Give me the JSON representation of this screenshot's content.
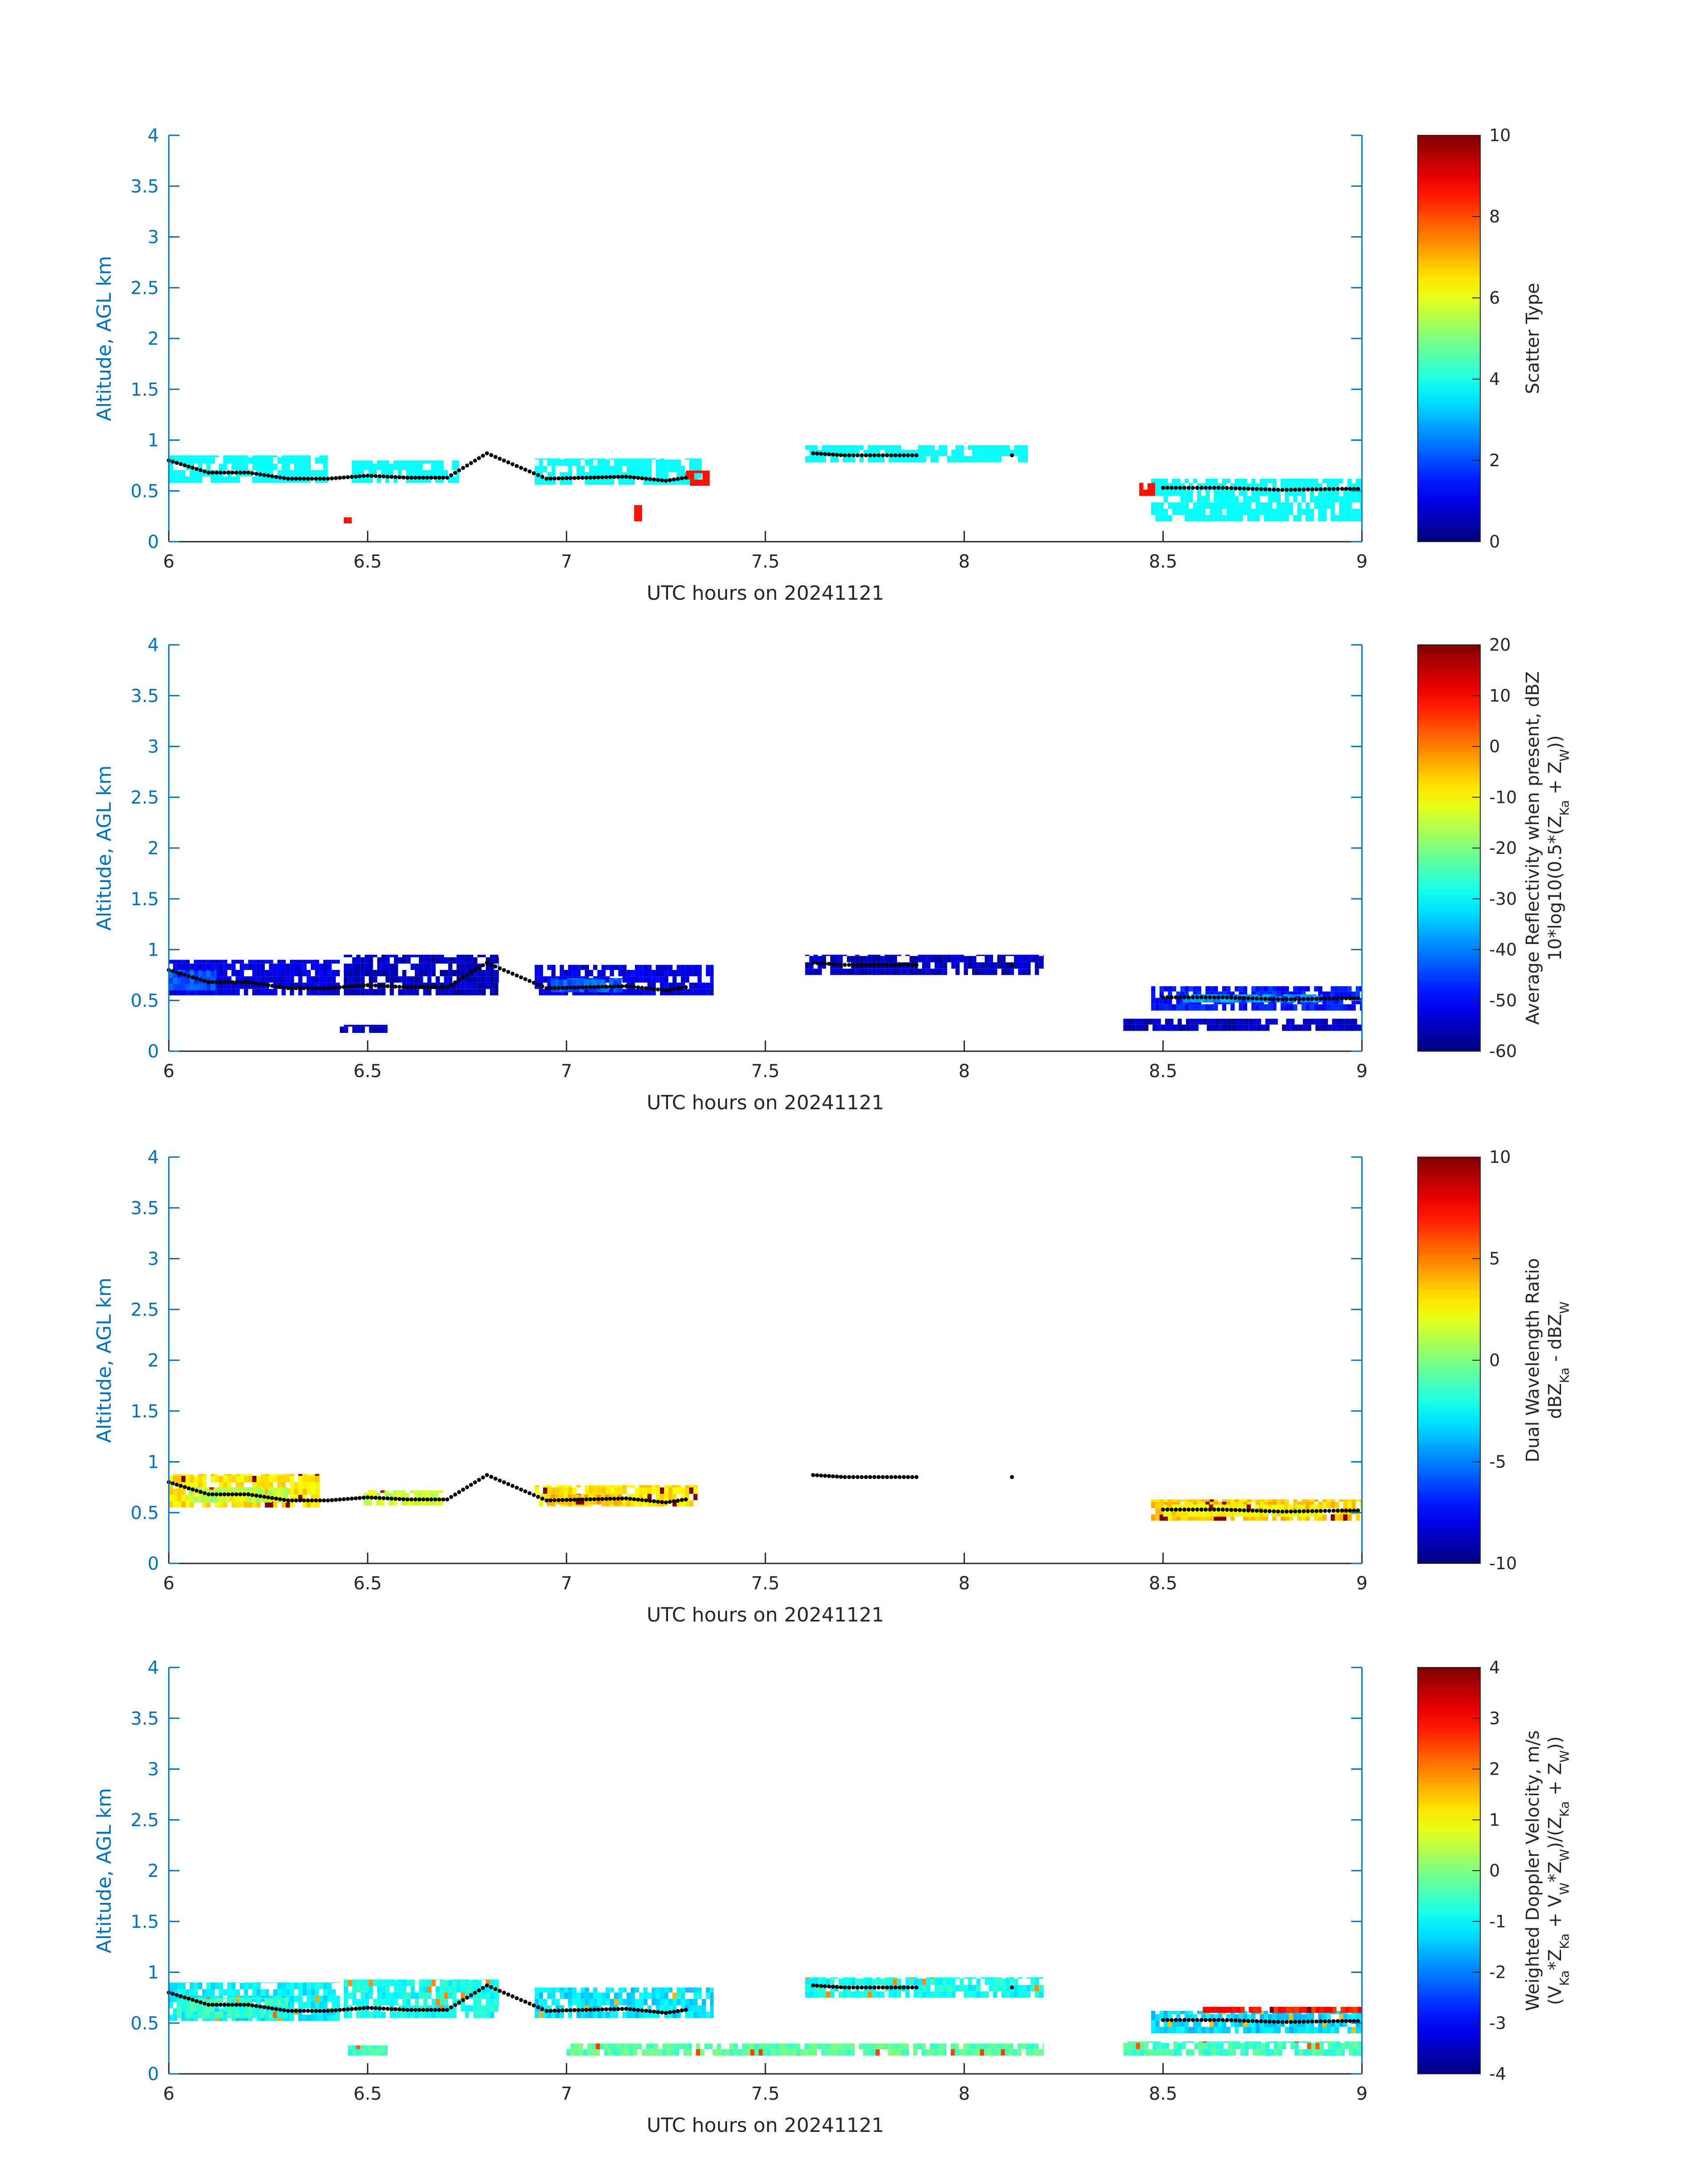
{
  "chart_data": [
    {
      "type": "heatmap",
      "xlabel": "UTC hours on 20241121",
      "ylabel": "Altitude, AGL km",
      "xlim": [
        6,
        9
      ],
      "ylim": [
        0,
        4
      ],
      "xticks": [
        "6",
        "6.5",
        "7",
        "7.5",
        "8",
        "8.5",
        "9"
      ],
      "yticks": [
        "0",
        "0.5",
        "1",
        "1.5",
        "2",
        "2.5",
        "3",
        "3.5",
        "4"
      ],
      "colorbar": {
        "label_lines": [
          "Scatter Type"
        ],
        "range": [
          0,
          10
        ],
        "ticks": [
          "0",
          "2",
          "4",
          "6",
          "8",
          "10"
        ],
        "colormap": "jet"
      },
      "echo_segments": [
        {
          "x0": 6.0,
          "x1": 6.4,
          "y0": 0.58,
          "y1": 0.85,
          "value": 3.8
        },
        {
          "x0": 6.46,
          "x1": 6.73,
          "y0": 0.58,
          "y1": 0.8,
          "value": 3.8
        },
        {
          "x0": 6.92,
          "x1": 7.34,
          "y0": 0.56,
          "y1": 0.82,
          "value": 3.8
        },
        {
          "x0": 7.6,
          "x1": 8.16,
          "y0": 0.78,
          "y1": 0.95,
          "value": 3.8
        },
        {
          "x0": 8.47,
          "x1": 9.0,
          "y0": 0.2,
          "y1": 0.62,
          "value": 3.8
        },
        {
          "x0": 8.44,
          "x1": 8.48,
          "y0": 0.45,
          "y1": 0.58,
          "value": 8.6
        },
        {
          "x0": 7.3,
          "x1": 7.36,
          "y0": 0.55,
          "y1": 0.7,
          "value": 8.6
        },
        {
          "x0": 6.44,
          "x1": 6.46,
          "y0": 0.18,
          "y1": 0.24,
          "value": 8.6
        },
        {
          "x0": 7.17,
          "x1": 7.19,
          "y0": 0.2,
          "y1": 0.36,
          "value": 8.6
        }
      ],
      "scatter_type_values": [
        3.8,
        8.6
      ],
      "cloud_base_trace": [
        {
          "x": 6.0,
          "y": 0.8
        },
        {
          "x": 6.1,
          "y": 0.68
        },
        {
          "x": 6.2,
          "y": 0.68
        },
        {
          "x": 6.3,
          "y": 0.62
        },
        {
          "x": 6.4,
          "y": 0.62
        },
        {
          "x": 6.5,
          "y": 0.65
        },
        {
          "x": 6.6,
          "y": 0.63
        },
        {
          "x": 6.7,
          "y": 0.63
        },
        {
          "x": 6.8,
          "y": 0.87
        },
        {
          "x": 6.95,
          "y": 0.62
        },
        {
          "x": 7.05,
          "y": 0.63
        },
        {
          "x": 7.15,
          "y": 0.64
        },
        {
          "x": 7.25,
          "y": 0.6
        },
        {
          "x": 7.3,
          "y": 0.63
        },
        {
          "x": 7.62,
          "y": 0.87
        },
        {
          "x": 7.7,
          "y": 0.85
        },
        {
          "x": 7.88,
          "y": 0.85
        },
        {
          "x": 8.12,
          "y": 0.85
        },
        {
          "x": 8.5,
          "y": 0.53
        },
        {
          "x": 8.65,
          "y": 0.53
        },
        {
          "x": 8.8,
          "y": 0.51
        },
        {
          "x": 8.95,
          "y": 0.52
        },
        {
          "x": 9.0,
          "y": 0.52
        }
      ]
    },
    {
      "type": "heatmap",
      "xlabel": "UTC hours on 20241121",
      "ylabel": "Altitude, AGL km",
      "xlim": [
        6,
        9
      ],
      "ylim": [
        0,
        4
      ],
      "xticks": [
        "6",
        "6.5",
        "7",
        "7.5",
        "8",
        "8.5",
        "9"
      ],
      "yticks": [
        "0",
        "0.5",
        "1",
        "1.5",
        "2",
        "2.5",
        "3",
        "3.5",
        "4"
      ],
      "colorbar": {
        "label_lines": [
          "Average Reflectivity when present, dBZ",
          "10*log10(0.5*(Z",
          "Ka",
          " + Z",
          "W",
          "))"
        ],
        "range": [
          -60,
          20
        ],
        "ticks": [
          "-60",
          "-50",
          "-40",
          "-30",
          "-20",
          "-10",
          "0",
          "10",
          "20"
        ],
        "colormap": "jet"
      },
      "echo_segments": [
        {
          "x0": 6.0,
          "x1": 6.43,
          "y0": 0.55,
          "y1": 0.9,
          "value": -52
        },
        {
          "x0": 6.0,
          "x1": 6.12,
          "y0": 0.6,
          "y1": 0.8,
          "value": -43
        },
        {
          "x0": 6.44,
          "x1": 6.83,
          "y0": 0.55,
          "y1": 0.95,
          "value": -55
        },
        {
          "x0": 6.43,
          "x1": 6.55,
          "y0": 0.18,
          "y1": 0.26,
          "value": -55
        },
        {
          "x0": 6.92,
          "x1": 7.37,
          "y0": 0.55,
          "y1": 0.85,
          "value": -52
        },
        {
          "x0": 6.96,
          "x1": 7.14,
          "y0": 0.58,
          "y1": 0.72,
          "value": -43
        },
        {
          "x0": 7.6,
          "x1": 8.2,
          "y0": 0.75,
          "y1": 0.95,
          "value": -55
        },
        {
          "x0": 8.4,
          "x1": 9.0,
          "y0": 0.2,
          "y1": 0.32,
          "value": -55
        },
        {
          "x0": 8.47,
          "x1": 9.0,
          "y0": 0.4,
          "y1": 0.64,
          "value": -48
        },
        {
          "x0": 8.55,
          "x1": 8.9,
          "y0": 0.48,
          "y1": 0.56,
          "value": -38
        }
      ],
      "cloud_base_trace": [
        {
          "x": 6.0,
          "y": 0.8
        },
        {
          "x": 6.1,
          "y": 0.68
        },
        {
          "x": 6.2,
          "y": 0.68
        },
        {
          "x": 6.3,
          "y": 0.62
        },
        {
          "x": 6.4,
          "y": 0.62
        },
        {
          "x": 6.5,
          "y": 0.65
        },
        {
          "x": 6.6,
          "y": 0.63
        },
        {
          "x": 6.7,
          "y": 0.63
        },
        {
          "x": 6.8,
          "y": 0.87
        },
        {
          "x": 6.95,
          "y": 0.62
        },
        {
          "x": 7.05,
          "y": 0.63
        },
        {
          "x": 7.15,
          "y": 0.64
        },
        {
          "x": 7.25,
          "y": 0.6
        },
        {
          "x": 7.3,
          "y": 0.63
        },
        {
          "x": 7.62,
          "y": 0.87
        },
        {
          "x": 7.7,
          "y": 0.85
        },
        {
          "x": 7.88,
          "y": 0.85
        },
        {
          "x": 8.12,
          "y": 0.85
        },
        {
          "x": 8.5,
          "y": 0.53
        },
        {
          "x": 8.65,
          "y": 0.53
        },
        {
          "x": 8.8,
          "y": 0.51
        },
        {
          "x": 8.95,
          "y": 0.52
        },
        {
          "x": 9.0,
          "y": 0.52
        }
      ]
    },
    {
      "type": "heatmap",
      "xlabel": "UTC hours on 20241121",
      "ylabel": "Altitude, AGL km",
      "xlim": [
        6,
        9
      ],
      "ylim": [
        0,
        4
      ],
      "xticks": [
        "6",
        "6.5",
        "7",
        "7.5",
        "8",
        "8.5",
        "9"
      ],
      "yticks": [
        "0",
        "0.5",
        "1",
        "1.5",
        "2",
        "2.5",
        "3",
        "3.5",
        "4"
      ],
      "colorbar": {
        "label_lines": [
          "Dual Wavelength Ratio",
          "dBZ",
          "Ka",
          " - dBZ",
          "W"
        ],
        "range": [
          -10,
          10
        ],
        "ticks": [
          "-10",
          "-5",
          "0",
          "5",
          "10"
        ],
        "colormap": "jet"
      },
      "echo_segments": [
        {
          "x0": 6.0,
          "x1": 6.38,
          "y0": 0.55,
          "y1": 0.88,
          "value": 3
        },
        {
          "x0": 6.05,
          "x1": 6.3,
          "y0": 0.6,
          "y1": 0.75,
          "value": 1
        },
        {
          "x0": 6.49,
          "x1": 6.69,
          "y0": 0.57,
          "y1": 0.72,
          "value": 1.5
        },
        {
          "x0": 6.92,
          "x1": 7.33,
          "y0": 0.56,
          "y1": 0.77,
          "value": 3
        },
        {
          "x0": 6.95,
          "x1": 7.15,
          "y0": 0.58,
          "y1": 0.68,
          "value": 4
        },
        {
          "x0": 8.47,
          "x1": 9.0,
          "y0": 0.42,
          "y1": 0.63,
          "value": 3.5
        },
        {
          "x0": 8.5,
          "x1": 8.9,
          "y0": 0.46,
          "y1": 0.58,
          "value": 2.5
        }
      ],
      "cloud_base_trace": [
        {
          "x": 6.0,
          "y": 0.8
        },
        {
          "x": 6.1,
          "y": 0.68
        },
        {
          "x": 6.2,
          "y": 0.68
        },
        {
          "x": 6.3,
          "y": 0.62
        },
        {
          "x": 6.4,
          "y": 0.62
        },
        {
          "x": 6.5,
          "y": 0.65
        },
        {
          "x": 6.6,
          "y": 0.63
        },
        {
          "x": 6.7,
          "y": 0.63
        },
        {
          "x": 6.8,
          "y": 0.87
        },
        {
          "x": 6.95,
          "y": 0.62
        },
        {
          "x": 7.05,
          "y": 0.63
        },
        {
          "x": 7.15,
          "y": 0.64
        },
        {
          "x": 7.25,
          "y": 0.6
        },
        {
          "x": 7.3,
          "y": 0.63
        },
        {
          "x": 7.62,
          "y": 0.87
        },
        {
          "x": 7.7,
          "y": 0.85
        },
        {
          "x": 7.88,
          "y": 0.85
        },
        {
          "x": 8.12,
          "y": 0.85
        },
        {
          "x": 8.5,
          "y": 0.53
        },
        {
          "x": 8.65,
          "y": 0.53
        },
        {
          "x": 8.8,
          "y": 0.51
        },
        {
          "x": 8.95,
          "y": 0.52
        },
        {
          "x": 9.0,
          "y": 0.52
        }
      ]
    },
    {
      "type": "heatmap",
      "xlabel": "UTC hours on 20241121",
      "ylabel": "Altitude, AGL km",
      "xlim": [
        6,
        9
      ],
      "ylim": [
        0,
        4
      ],
      "xticks": [
        "6",
        "6.5",
        "7",
        "7.5",
        "8",
        "8.5",
        "9"
      ],
      "yticks": [
        "0",
        "0.5",
        "1",
        "1.5",
        "2",
        "2.5",
        "3",
        "3.5",
        "4"
      ],
      "colorbar": {
        "label_lines": [
          "Weighted Doppler Velocity, m/s",
          "(V",
          "Ka",
          "*Z",
          "Ka",
          " + V",
          "W",
          "*Z",
          "W",
          ")/(Z",
          "Ka",
          " + Z",
          "W",
          "))"
        ],
        "range": [
          -4,
          4
        ],
        "ticks": [
          "-4",
          "-3",
          "-2",
          "-1",
          "0",
          "1",
          "2",
          "3",
          "4"
        ],
        "colormap": "jet"
      },
      "echo_segments": [
        {
          "x0": 6.0,
          "x1": 6.43,
          "y0": 0.52,
          "y1": 0.9,
          "value": -1.1
        },
        {
          "x0": 6.02,
          "x1": 6.3,
          "y0": 0.55,
          "y1": 0.75,
          "value": -0.6
        },
        {
          "x0": 6.44,
          "x1": 6.83,
          "y0": 0.55,
          "y1": 0.93,
          "value": -0.9
        },
        {
          "x0": 6.45,
          "x1": 6.55,
          "y0": 0.18,
          "y1": 0.28,
          "value": -0.5
        },
        {
          "x0": 6.92,
          "x1": 7.37,
          "y0": 0.55,
          "y1": 0.85,
          "value": -1.2
        },
        {
          "x0": 7.6,
          "x1": 8.2,
          "y0": 0.75,
          "y1": 0.95,
          "value": -0.9
        },
        {
          "x0": 7.0,
          "x1": 8.2,
          "y0": 0.18,
          "y1": 0.3,
          "value": -0.3
        },
        {
          "x0": 8.4,
          "x1": 9.0,
          "y0": 0.18,
          "y1": 0.32,
          "value": -0.5
        },
        {
          "x0": 8.47,
          "x1": 9.0,
          "y0": 0.4,
          "y1": 0.62,
          "value": -1.3
        },
        {
          "x0": 8.6,
          "x1": 9.0,
          "y0": 0.6,
          "y1": 0.66,
          "value": 2.8
        }
      ],
      "cloud_base_trace": [
        {
          "x": 6.0,
          "y": 0.8
        },
        {
          "x": 6.1,
          "y": 0.68
        },
        {
          "x": 6.2,
          "y": 0.68
        },
        {
          "x": 6.3,
          "y": 0.62
        },
        {
          "x": 6.4,
          "y": 0.62
        },
        {
          "x": 6.5,
          "y": 0.65
        },
        {
          "x": 6.6,
          "y": 0.63
        },
        {
          "x": 6.7,
          "y": 0.63
        },
        {
          "x": 6.8,
          "y": 0.87
        },
        {
          "x": 6.95,
          "y": 0.62
        },
        {
          "x": 7.05,
          "y": 0.63
        },
        {
          "x": 7.15,
          "y": 0.64
        },
        {
          "x": 7.25,
          "y": 0.6
        },
        {
          "x": 7.3,
          "y": 0.63
        },
        {
          "x": 7.62,
          "y": 0.87
        },
        {
          "x": 7.7,
          "y": 0.85
        },
        {
          "x": 7.88,
          "y": 0.85
        },
        {
          "x": 8.12,
          "y": 0.85
        },
        {
          "x": 8.5,
          "y": 0.53
        },
        {
          "x": 8.65,
          "y": 0.53
        },
        {
          "x": 8.8,
          "y": 0.51
        },
        {
          "x": 8.95,
          "y": 0.52
        },
        {
          "x": 9.0,
          "y": 0.52
        }
      ]
    }
  ],
  "colors": {
    "axis_blue": "#0072BD",
    "axis_text": "#262626",
    "trace_dot": "#000000"
  }
}
